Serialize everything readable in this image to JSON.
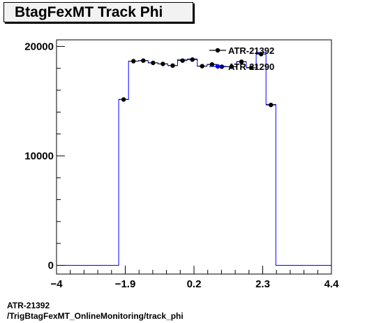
{
  "chart_data": {
    "type": "histogram",
    "title": "BtagFexMT Track Phi",
    "xlabel": "",
    "ylabel": "",
    "xlim": [
      -4,
      4.4
    ],
    "ylim": [
      -800,
      20600
    ],
    "x_ticks": [
      "−4",
      "−1.9",
      "0.2",
      "2.3",
      "4.4"
    ],
    "y_ticks": [
      "0",
      "10000",
      "20000"
    ],
    "y_tick_values": [
      0,
      10000,
      20000
    ],
    "x_tick_values": [
      -4,
      -1.9,
      0.2,
      2.3,
      4.4
    ],
    "bin_edges": [
      -4.2,
      -3.9,
      -3.6,
      -3.3,
      -3.0,
      -2.7,
      -2.4,
      -2.1,
      -1.8,
      -1.5,
      -1.2,
      -0.9,
      -0.6,
      -0.3,
      0.0,
      0.3,
      0.6,
      0.9,
      1.2,
      1.5,
      1.8,
      2.1,
      2.4,
      2.7,
      3.0,
      3.3,
      3.6,
      3.9,
      4.2,
      4.5
    ],
    "series": [
      {
        "name": "ATR-21392",
        "style": "markers",
        "color": "#000000",
        "values": [
          0,
          0,
          0,
          0,
          0,
          0,
          0,
          15150,
          18650,
          18700,
          18500,
          18400,
          18250,
          18700,
          18800,
          18200,
          18350,
          18150,
          18150,
          18600,
          18050,
          19300,
          14650,
          0,
          0,
          0,
          0,
          0,
          0
        ]
      },
      {
        "name": "ATR-21290",
        "style": "line",
        "color": "#0000ff",
        "values": [
          0,
          0,
          0,
          0,
          0,
          0,
          0,
          15150,
          18650,
          18700,
          18500,
          18400,
          18250,
          18800,
          18850,
          18200,
          18350,
          18150,
          18150,
          18600,
          18050,
          19450,
          14700,
          0,
          0,
          0,
          0,
          0,
          0
        ]
      }
    ],
    "legend": {
      "placement": "top-right"
    }
  },
  "footer": {
    "line1": "ATR-21392",
    "line2": "/TrigBtagFexMT_OnlineMonitoring/track_phi"
  }
}
